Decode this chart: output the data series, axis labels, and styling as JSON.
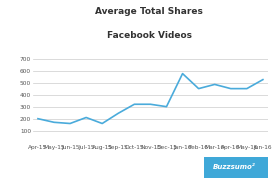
{
  "title_line1": "Average Total Shares",
  "title_line2": "Facebook Videos",
  "x_labels": [
    "Apr-15",
    "May-15",
    "Jun-15",
    "Jul-15",
    "Aug-15",
    "Sep-15",
    "Oct-15",
    "Nov-15",
    "Dec-15",
    "Jan-16",
    "Feb-16",
    "Mar-16",
    "Apr-16",
    "May-16",
    "Jun-16"
  ],
  "y_values": [
    200,
    170,
    160,
    210,
    160,
    245,
    320,
    320,
    300,
    575,
    450,
    485,
    450,
    450,
    525
  ],
  "ylim": [
    0,
    700
  ],
  "yticks": [
    100,
    200,
    300,
    400,
    500,
    600,
    700
  ],
  "line_color": "#4aabdb",
  "line_width": 1.2,
  "background_color": "#ffffff",
  "grid_color": "#cccccc",
  "tick_label_fontsize": 4.2,
  "title_fontsize": 6.5,
  "logo_text": "Buzzsumo",
  "logo_bg": "#3fa8d8",
  "logo_text_color": "#ffffff"
}
